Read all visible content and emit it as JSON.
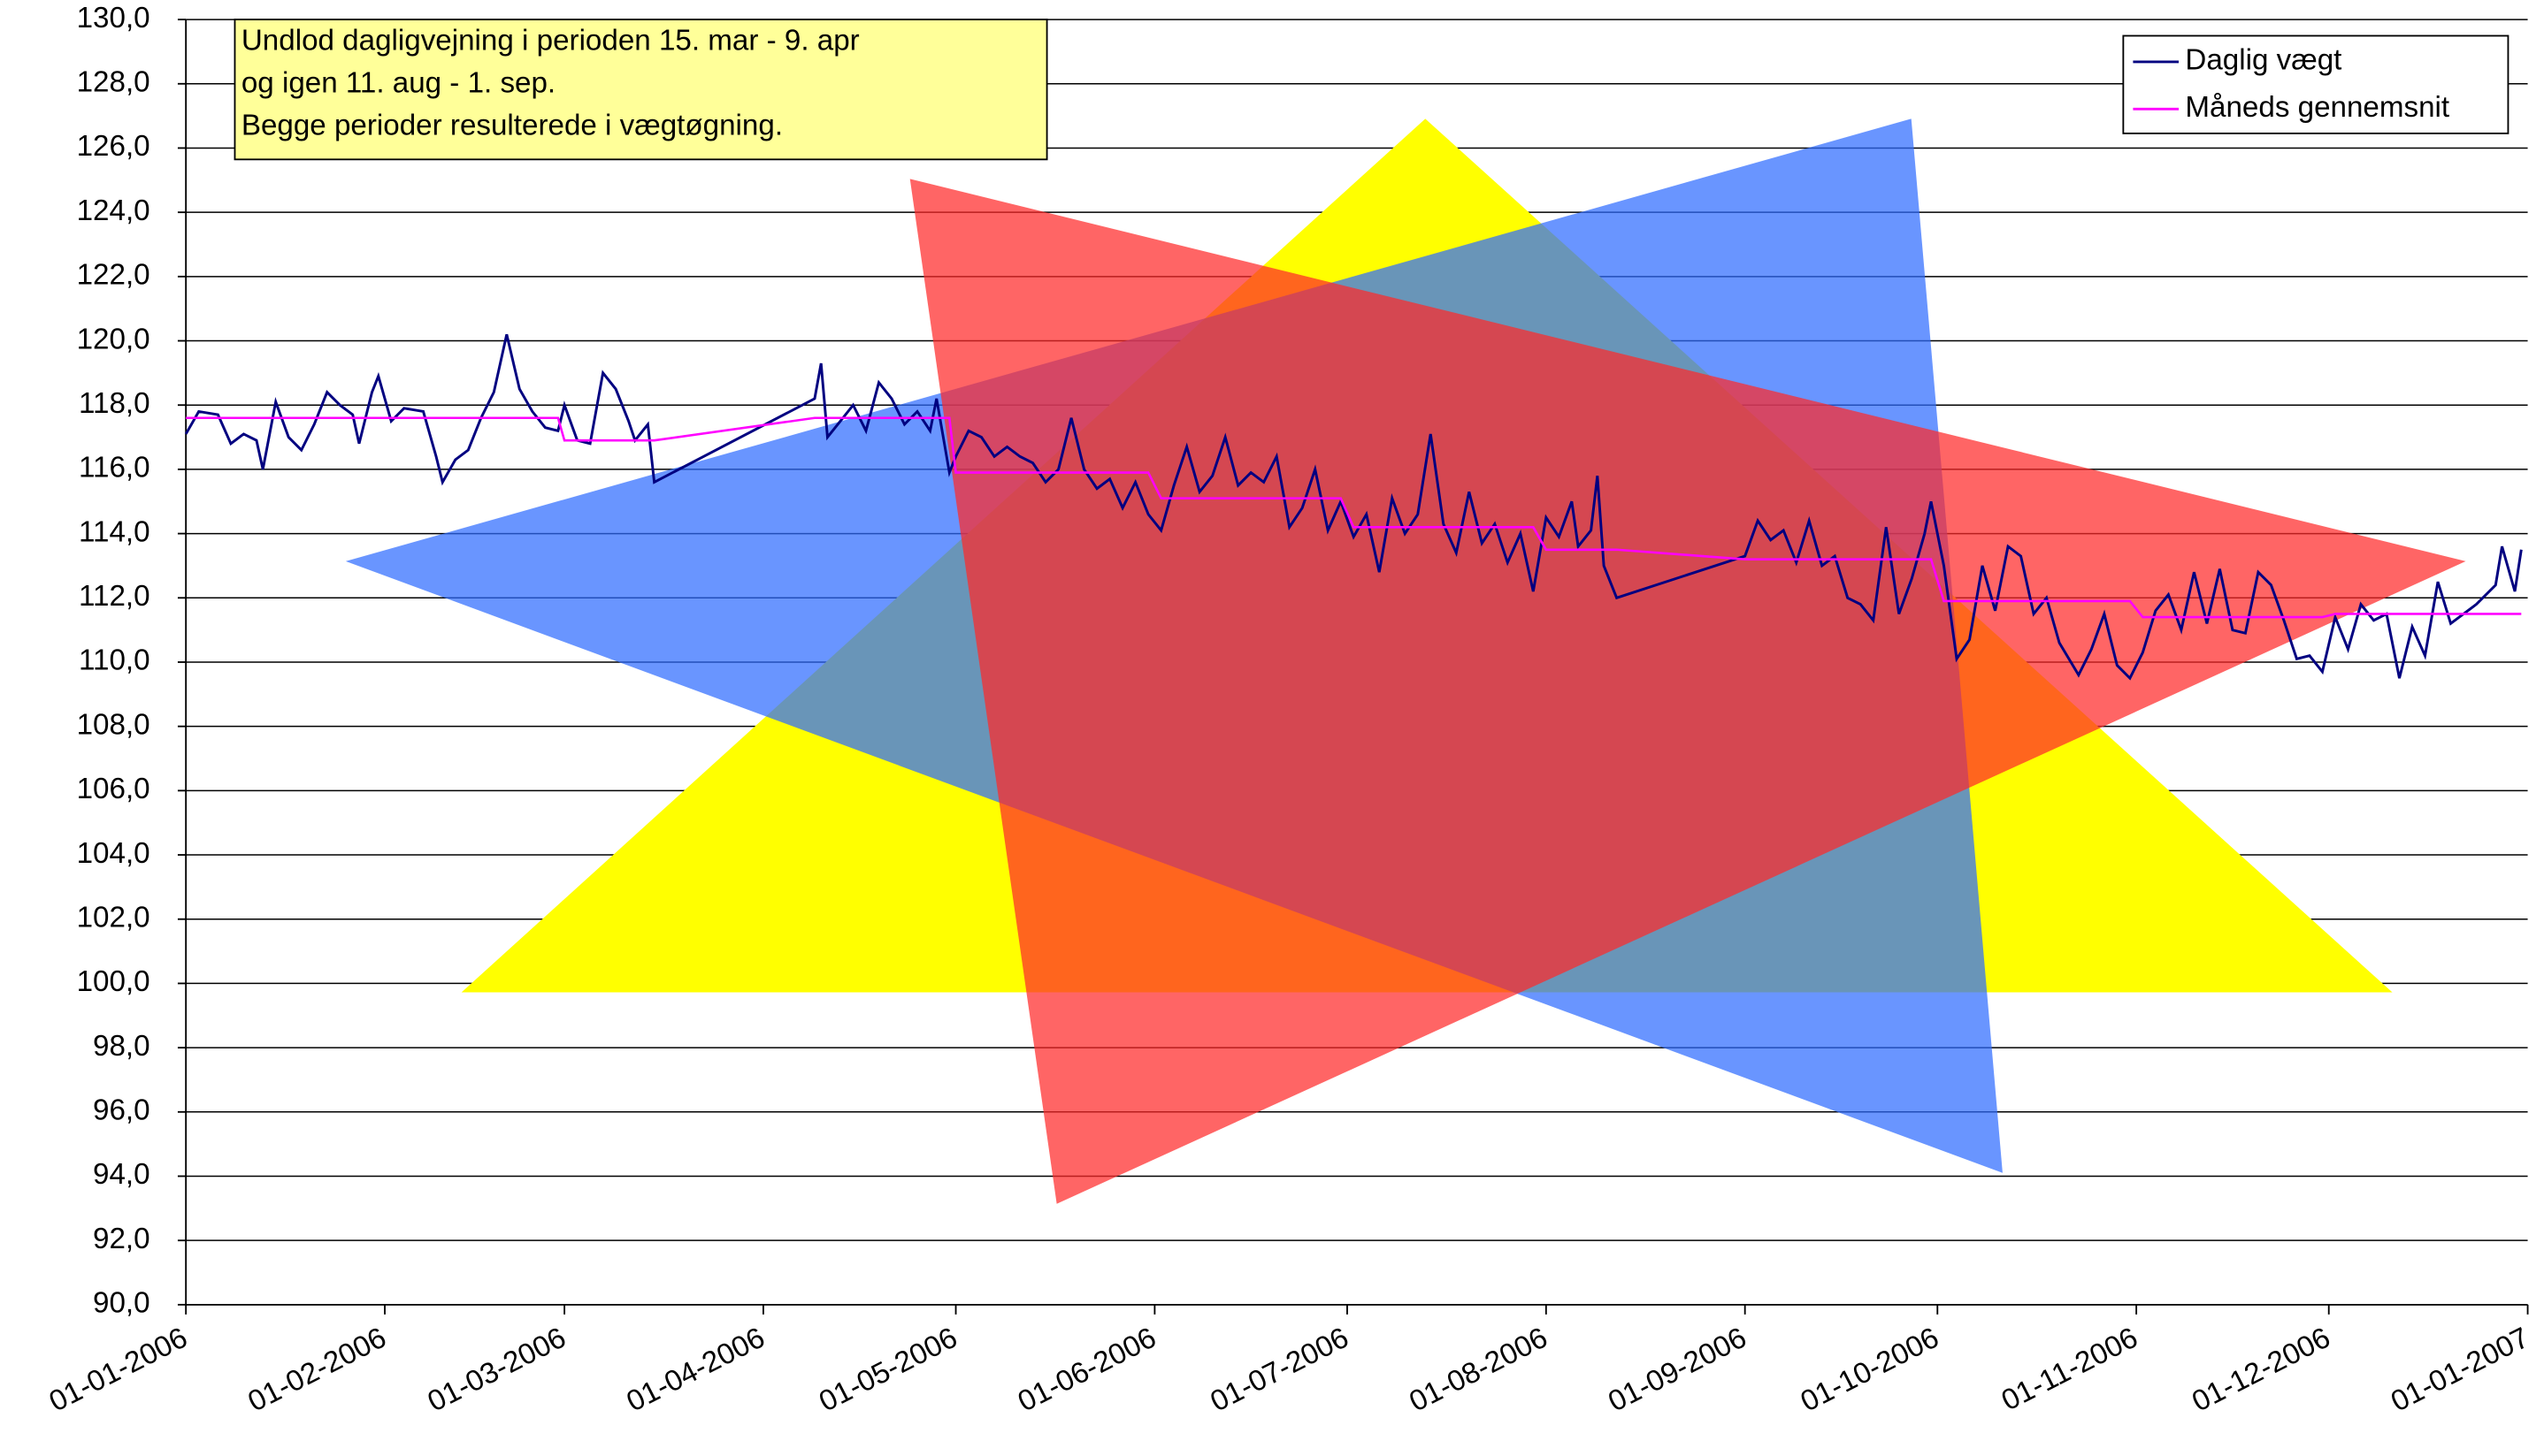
{
  "chart_data": {
    "type": "line",
    "annotation": [
      "Undlod dagligvejning i perioden 15. mar - 9. apr",
      "og igen 11. aug - 1. sep.",
      "Begge perioder resulterede i vægtøgning."
    ],
    "legend": "top-right",
    "grid": true,
    "ylim": [
      90,
      130
    ],
    "yticks": [
      {
        "value": 90,
        "label": "90,0"
      },
      {
        "value": 92,
        "label": "92,0"
      },
      {
        "value": 94,
        "label": "94,0"
      },
      {
        "value": 96,
        "label": "96,0"
      },
      {
        "value": 98,
        "label": "98,0"
      },
      {
        "value": 100,
        "label": "100,0"
      },
      {
        "value": 102,
        "label": "102,0"
      },
      {
        "value": 104,
        "label": "104,0"
      },
      {
        "value": 106,
        "label": "106,0"
      },
      {
        "value": 108,
        "label": "108,0"
      },
      {
        "value": 110,
        "label": "110,0"
      },
      {
        "value": 112,
        "label": "112,0"
      },
      {
        "value": 114,
        "label": "114,0"
      },
      {
        "value": 116,
        "label": "116,0"
      },
      {
        "value": 118,
        "label": "118,0"
      },
      {
        "value": 120,
        "label": "120,0"
      },
      {
        "value": 122,
        "label": "122,0"
      },
      {
        "value": 124,
        "label": "124,0"
      },
      {
        "value": 126,
        "label": "126,0"
      },
      {
        "value": 128,
        "label": "128,0"
      },
      {
        "value": 130,
        "label": "130,0"
      }
    ],
    "xlim": [
      "2006-01-01",
      "2007-01-01"
    ],
    "xticks": [
      {
        "value": "2006-01-01",
        "label": "01-01-2006"
      },
      {
        "value": "2006-02-01",
        "label": "01-02-2006"
      },
      {
        "value": "2006-03-01",
        "label": "01-03-2006"
      },
      {
        "value": "2006-04-01",
        "label": "01-04-2006"
      },
      {
        "value": "2006-05-01",
        "label": "01-05-2006"
      },
      {
        "value": "2006-06-01",
        "label": "01-06-2006"
      },
      {
        "value": "2006-07-01",
        "label": "01-07-2006"
      },
      {
        "value": "2006-08-01",
        "label": "01-08-2006"
      },
      {
        "value": "2006-09-01",
        "label": "01-09-2006"
      },
      {
        "value": "2006-10-01",
        "label": "01-10-2006"
      },
      {
        "value": "2006-11-01",
        "label": "01-11-2006"
      },
      {
        "value": "2006-12-01",
        "label": "01-12-2006"
      },
      {
        "value": "2007-01-01",
        "label": "01-01-2007"
      }
    ],
    "x": [
      "2006-01-01",
      "2006-01-03",
      "2006-01-06",
      "2006-01-08",
      "2006-01-10",
      "2006-01-12",
      "2006-01-13",
      "2006-01-15",
      "2006-01-17",
      "2006-01-19",
      "2006-01-21",
      "2006-01-23",
      "2006-01-25",
      "2006-01-27",
      "2006-01-28",
      "2006-01-30",
      "2006-01-31",
      "2006-02-02",
      "2006-02-04",
      "2006-02-07",
      "2006-02-09",
      "2006-02-10",
      "2006-02-12",
      "2006-02-14",
      "2006-02-16",
      "2006-02-18",
      "2006-02-20",
      "2006-02-22",
      "2006-02-24",
      "2006-02-26",
      "2006-02-28",
      "2006-03-01",
      "2006-03-03",
      "2006-03-05",
      "2006-03-07",
      "2006-03-09",
      "2006-03-11",
      "2006-03-12",
      "2006-03-14",
      "2006-03-15",
      "2006-04-09",
      "2006-04-10",
      "2006-04-11",
      "2006-04-13",
      "2006-04-15",
      "2006-04-17",
      "2006-04-19",
      "2006-04-21",
      "2006-04-23",
      "2006-04-25",
      "2006-04-27",
      "2006-04-28",
      "2006-04-30",
      "2006-05-01",
      "2006-05-03",
      "2006-05-05",
      "2006-05-07",
      "2006-05-09",
      "2006-05-11",
      "2006-05-13",
      "2006-05-15",
      "2006-05-17",
      "2006-05-19",
      "2006-05-21",
      "2006-05-23",
      "2006-05-25",
      "2006-05-27",
      "2006-05-29",
      "2006-05-31",
      "2006-06-02",
      "2006-06-04",
      "2006-06-06",
      "2006-06-08",
      "2006-06-10",
      "2006-06-12",
      "2006-06-14",
      "2006-06-16",
      "2006-06-18",
      "2006-06-20",
      "2006-06-22",
      "2006-06-24",
      "2006-06-26",
      "2006-06-28",
      "2006-06-30",
      "2006-07-02",
      "2006-07-04",
      "2006-07-06",
      "2006-07-08",
      "2006-07-10",
      "2006-07-12",
      "2006-07-14",
      "2006-07-16",
      "2006-07-18",
      "2006-07-20",
      "2006-07-22",
      "2006-07-24",
      "2006-07-26",
      "2006-07-28",
      "2006-07-30",
      "2006-08-01",
      "2006-08-03",
      "2006-08-05",
      "2006-08-06",
      "2006-08-08",
      "2006-08-09",
      "2006-08-10",
      "2006-08-12",
      "2006-09-01",
      "2006-09-03",
      "2006-09-05",
      "2006-09-07",
      "2006-09-09",
      "2006-09-11",
      "2006-09-13",
      "2006-09-15",
      "2006-09-17",
      "2006-09-19",
      "2006-09-21",
      "2006-09-23",
      "2006-09-25",
      "2006-09-27",
      "2006-09-29",
      "2006-09-30",
      "2006-10-02",
      "2006-10-04",
      "2006-10-06",
      "2006-10-08",
      "2006-10-10",
      "2006-10-12",
      "2006-10-14",
      "2006-10-16",
      "2006-10-18",
      "2006-10-20",
      "2006-10-23",
      "2006-10-25",
      "2006-10-27",
      "2006-10-29",
      "2006-10-31",
      "2006-11-02",
      "2006-11-04",
      "2006-11-06",
      "2006-11-08",
      "2006-11-10",
      "2006-11-12",
      "2006-11-14",
      "2006-11-16",
      "2006-11-18",
      "2006-11-20",
      "2006-11-22",
      "2006-11-24",
      "2006-11-26",
      "2006-11-28",
      "2006-11-30",
      "2006-12-02",
      "2006-12-04",
      "2006-12-06",
      "2006-12-08",
      "2006-12-10",
      "2006-12-12",
      "2006-12-14",
      "2006-12-16",
      "2006-12-18",
      "2006-12-20",
      "2006-12-22",
      "2006-12-24",
      "2006-12-27",
      "2006-12-28",
      "2006-12-30",
      "2006-12-31"
    ],
    "series": [
      {
        "name": "Daglig vægt",
        "color": "#000080",
        "values": [
          117.1,
          117.8,
          117.7,
          116.8,
          117.1,
          116.9,
          116.0,
          118.1,
          117.0,
          116.6,
          117.4,
          118.4,
          118.0,
          117.7,
          116.8,
          118.4,
          118.9,
          117.5,
          117.9,
          117.8,
          116.4,
          115.6,
          116.3,
          116.6,
          117.6,
          118.4,
          120.2,
          118.5,
          117.8,
          117.3,
          117.2,
          118.0,
          116.9,
          116.8,
          119.0,
          118.5,
          117.5,
          116.9,
          117.4,
          115.6,
          118.2,
          119.3,
          117.0,
          117.5,
          118.0,
          117.2,
          118.7,
          118.2,
          117.4,
          117.8,
          117.2,
          118.2,
          115.9,
          116.4,
          117.2,
          117.0,
          116.4,
          116.7,
          116.4,
          116.2,
          115.6,
          116.0,
          117.6,
          116.0,
          115.4,
          115.7,
          114.8,
          115.6,
          114.6,
          114.1,
          115.5,
          116.7,
          115.3,
          115.8,
          117.0,
          115.5,
          115.9,
          115.6,
          116.4,
          114.2,
          114.8,
          116.0,
          114.1,
          115.0,
          113.9,
          114.6,
          112.8,
          115.1,
          114.0,
          114.6,
          117.1,
          114.3,
          113.4,
          115.3,
          113.7,
          114.3,
          113.1,
          114.0,
          112.2,
          114.5,
          113.9,
          115.0,
          113.6,
          114.1,
          115.8,
          113.0,
          112.0,
          113.3,
          114.4,
          113.8,
          114.1,
          113.1,
          114.4,
          113.0,
          113.3,
          112.0,
          111.8,
          111.3,
          114.2,
          111.5,
          112.6,
          114.0,
          115.0,
          113.0,
          110.1,
          110.7,
          113.0,
          111.6,
          113.6,
          113.3,
          111.5,
          112.0,
          110.6,
          109.6,
          110.4,
          111.5,
          109.9,
          109.5,
          110.3,
          111.6,
          112.1,
          111.0,
          112.8,
          111.2,
          112.9,
          111.0,
          110.9,
          112.8,
          112.4,
          111.3,
          110.1,
          110.2,
          109.7,
          111.4,
          110.4,
          111.8,
          111.3,
          111.5,
          109.5,
          111.1,
          110.2,
          112.5,
          111.2,
          111.5,
          111.8,
          112.4,
          113.6,
          112.2,
          113.5
        ]
      },
      {
        "name": "Måneds gennemsnit",
        "color": "#ff00ff",
        "values": [
          117.6,
          117.6,
          117.6,
          117.6,
          117.6,
          117.6,
          117.6,
          117.6,
          117.6,
          117.6,
          117.6,
          117.6,
          117.6,
          117.6,
          117.6,
          117.6,
          117.6,
          117.6,
          117.6,
          117.6,
          117.6,
          117.6,
          117.6,
          117.6,
          117.6,
          117.6,
          117.6,
          117.6,
          117.6,
          117.6,
          117.6,
          116.9,
          116.9,
          116.9,
          116.9,
          116.9,
          116.9,
          116.9,
          116.9,
          116.9,
          117.6,
          117.6,
          117.6,
          117.6,
          117.6,
          117.6,
          117.6,
          117.6,
          117.6,
          117.6,
          117.6,
          117.6,
          117.6,
          115.9,
          115.9,
          115.9,
          115.9,
          115.9,
          115.9,
          115.9,
          115.9,
          115.9,
          115.9,
          115.9,
          115.9,
          115.9,
          115.9,
          115.9,
          115.9,
          115.1,
          115.1,
          115.1,
          115.1,
          115.1,
          115.1,
          115.1,
          115.1,
          115.1,
          115.1,
          115.1,
          115.1,
          115.1,
          115.1,
          115.1,
          114.2,
          114.2,
          114.2,
          114.2,
          114.2,
          114.2,
          114.2,
          114.2,
          114.2,
          114.2,
          114.2,
          114.2,
          114.2,
          114.2,
          114.2,
          113.5,
          113.5,
          113.5,
          113.5,
          113.5,
          113.5,
          113.5,
          113.5,
          113.2,
          113.2,
          113.2,
          113.2,
          113.2,
          113.2,
          113.2,
          113.2,
          113.2,
          113.2,
          113.2,
          113.2,
          113.2,
          113.2,
          113.2,
          113.2,
          111.9,
          111.9,
          111.9,
          111.9,
          111.9,
          111.9,
          111.9,
          111.9,
          111.9,
          111.9,
          111.9,
          111.9,
          111.9,
          111.9,
          111.9,
          111.4,
          111.4,
          111.4,
          111.4,
          111.4,
          111.4,
          111.4,
          111.4,
          111.4,
          111.4,
          111.4,
          111.4,
          111.4,
          111.4,
          111.4,
          111.5,
          111.5,
          111.5,
          111.5,
          111.5,
          111.5,
          111.5,
          111.5,
          111.5,
          111.5,
          111.5,
          111.5,
          111.5,
          111.5,
          111.5,
          111.5
        ]
      }
    ]
  }
}
